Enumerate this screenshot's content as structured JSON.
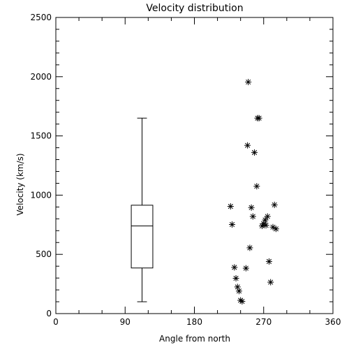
{
  "chart_data": {
    "type": "scatter",
    "title": "Velocity distribution",
    "xlabel": "Angle from north",
    "ylabel": "Velocity (km/s)",
    "xlim": [
      0,
      360
    ],
    "ylim": [
      0,
      2500
    ],
    "xticks": [
      0,
      90,
      180,
      270,
      360
    ],
    "yticks": [
      0,
      500,
      1000,
      1500,
      2000,
      2500
    ],
    "x_minor_step": 30,
    "y_minor_step": 100,
    "grid": false,
    "boxplot": {
      "x": 112,
      "width_data": 28,
      "whisker_low": 100,
      "q1": 385,
      "median": 740,
      "q3": 915,
      "whisker_high": 1650
    },
    "series": [
      {
        "marker": "asterisk",
        "points": [
          [
            227,
            905
          ],
          [
            229,
            752
          ],
          [
            232,
            390
          ],
          [
            234,
            298
          ],
          [
            236,
            225
          ],
          [
            238,
            190
          ],
          [
            240,
            112
          ],
          [
            242,
            103
          ],
          [
            247,
            383
          ],
          [
            249,
            1420
          ],
          [
            250,
            1955
          ],
          [
            252,
            555
          ],
          [
            254,
            895
          ],
          [
            256,
            820
          ],
          [
            258,
            1360
          ],
          [
            261,
            1075
          ],
          [
            262,
            1650
          ],
          [
            264,
            1650
          ],
          [
            268,
            740
          ],
          [
            270,
            760
          ],
          [
            272,
            790
          ],
          [
            273,
            745
          ],
          [
            275,
            820
          ],
          [
            277,
            440
          ],
          [
            279,
            265
          ],
          [
            282,
            730
          ],
          [
            284,
            918
          ],
          [
            286,
            715
          ]
        ]
      }
    ]
  }
}
